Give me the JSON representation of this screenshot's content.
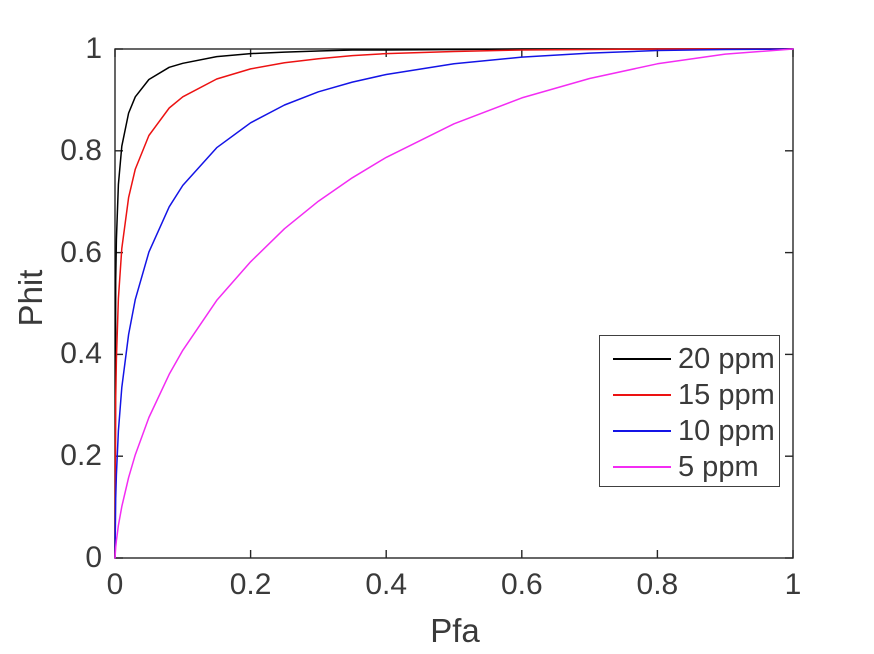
{
  "figure": {
    "background": "#ffffff",
    "axis_color": "#262626",
    "text_color": "#3a3a3a"
  },
  "chart_data": {
    "type": "line",
    "title": "",
    "xlabel": "Pfa",
    "ylabel": "Phit",
    "xlim": [
      0,
      1
    ],
    "ylim": [
      0,
      1
    ],
    "xticks": [
      0,
      0.2,
      0.4,
      0.6,
      0.8,
      1
    ],
    "yticks": [
      0,
      0.2,
      0.4,
      0.6,
      0.8,
      1
    ],
    "xtick_labels": [
      "0",
      "0.2",
      "0.4",
      "0.6",
      "0.8",
      "1"
    ],
    "ytick_labels": [
      "0",
      "0.2",
      "0.4",
      "0.6",
      "0.8",
      "1"
    ],
    "grid": false,
    "box": true,
    "legend_position": "bottom-right",
    "x": [
      0,
      0.001,
      0.002,
      0.005,
      0.01,
      0.02,
      0.03,
      0.05,
      0.08,
      0.1,
      0.15,
      0.2,
      0.25,
      0.3,
      0.35,
      0.4,
      0.5,
      0.6,
      0.7,
      0.8,
      0.9,
      1
    ],
    "series": [
      {
        "name": "20 ppm",
        "color": "#000000",
        "y": [
          0,
          0.544,
          0.626,
          0.734,
          0.809,
          0.874,
          0.906,
          0.94,
          0.964,
          0.972,
          0.985,
          0.991,
          0.994,
          0.996,
          0.998,
          0.998,
          0.999,
          1,
          1,
          1,
          1,
          1
        ]
      },
      {
        "name": "15 ppm",
        "color": "#ec1212",
        "y": [
          0,
          0.312,
          0.391,
          0.51,
          0.608,
          0.708,
          0.764,
          0.83,
          0.884,
          0.906,
          0.941,
          0.961,
          0.973,
          0.981,
          0.987,
          0.991,
          0.995,
          0.998,
          0.999,
          1,
          1,
          1
        ]
      },
      {
        "name": "10 ppm",
        "color": "#1414e6",
        "y": [
          0,
          0.117,
          0.164,
          0.25,
          0.335,
          0.439,
          0.508,
          0.601,
          0.69,
          0.732,
          0.806,
          0.855,
          0.89,
          0.916,
          0.935,
          0.95,
          0.971,
          0.984,
          0.992,
          0.997,
          0.999,
          1
        ]
      },
      {
        "name": "5 ppm",
        "color": "#f32cf3",
        "y": [
          0,
          0.021,
          0.034,
          0.064,
          0.101,
          0.158,
          0.203,
          0.276,
          0.361,
          0.408,
          0.506,
          0.582,
          0.647,
          0.701,
          0.747,
          0.787,
          0.853,
          0.904,
          0.942,
          0.971,
          0.99,
          1
        ]
      }
    ]
  }
}
